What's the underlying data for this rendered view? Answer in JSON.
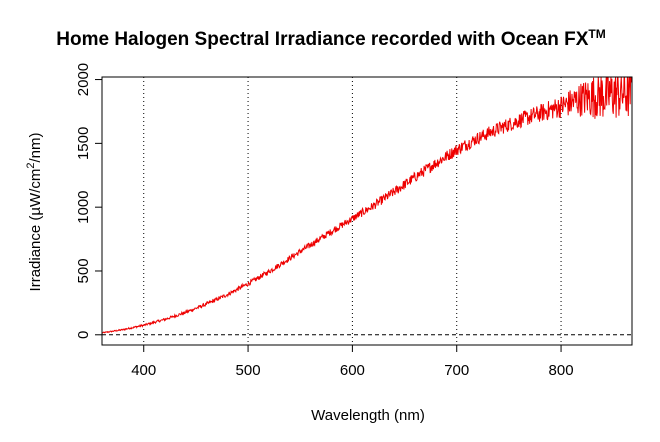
{
  "chart_data": {
    "type": "line",
    "title": "Home Halogen Spectral Irradiance recorded with Ocean FX",
    "title_superscript": "TM",
    "xlabel": "Wavelength (nm)",
    "ylabel_prefix": "Irradiance (µW/cm",
    "ylabel_superscript": "2",
    "ylabel_suffix": "/nm)",
    "xlim": [
      360,
      868
    ],
    "ylim": [
      -80,
      2020
    ],
    "x_ticks": [
      400,
      500,
      600,
      700,
      800
    ],
    "y_ticks": [
      0,
      500,
      1000,
      1500,
      2000
    ],
    "grid": "vertical dotted at x ticks",
    "reference_line": {
      "y": 0,
      "style": "dashed"
    },
    "series": [
      {
        "color": "#ee0000",
        "x": [
          360,
          380,
          400,
          420,
          440,
          460,
          480,
          500,
          520,
          540,
          560,
          580,
          600,
          620,
          640,
          660,
          680,
          700,
          720,
          740,
          760,
          780,
          800,
          820,
          840,
          860,
          868
        ],
        "values": [
          15,
          40,
          75,
          120,
          175,
          240,
          315,
          400,
          495,
          600,
          705,
          810,
          910,
          1010,
          1120,
          1235,
          1345,
          1450,
          1540,
          1615,
          1680,
          1735,
          1790,
          1850,
          1880,
          1900,
          1900
        ],
        "noise_amplitude": [
          4,
          6,
          8,
          10,
          12,
          14,
          16,
          18,
          20,
          22,
          24,
          26,
          30,
          34,
          38,
          42,
          45,
          48,
          50,
          55,
          60,
          70,
          90,
          140,
          200,
          220,
          220
        ]
      }
    ]
  }
}
